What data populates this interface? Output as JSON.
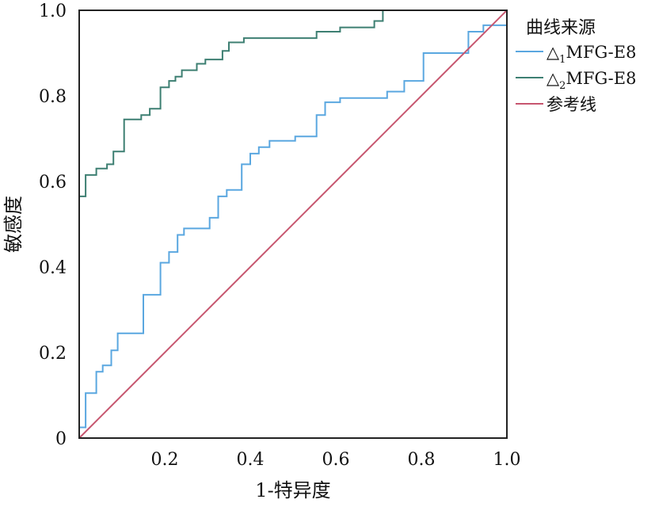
{
  "chart_data": {
    "type": "line",
    "xlabel": "1-特异度",
    "ylabel": "敏感度",
    "xlim": [
      0,
      1
    ],
    "ylim": [
      0,
      1
    ],
    "x_ticks": [
      "0.2",
      "0.4",
      "0.6",
      "0.8",
      "1.0"
    ],
    "x_tick_values": [
      0.2,
      0.4,
      0.6,
      0.8,
      1.0
    ],
    "y_ticks": [
      "0",
      "0.2",
      "0.4",
      "0.6",
      "0.8",
      "1.0"
    ],
    "y_tick_values": [
      0,
      0.2,
      0.4,
      0.6,
      0.8,
      1.0
    ],
    "grid": false,
    "legend": {
      "title": "曲线来源",
      "position": "right",
      "entries": [
        {
          "prefix": "△",
          "sub": "1",
          "suffix": "MFG-E8",
          "color": "#5aa7e0"
        },
        {
          "prefix": "△",
          "sub": "2",
          "suffix": "MFG-E8",
          "color": "#3d7f72"
        },
        {
          "prefix": "参考线",
          "sub": "",
          "suffix": "",
          "color": "#c7566f"
        }
      ]
    },
    "series": [
      {
        "name": "△1MFG-E8",
        "color": "#5aa7e0",
        "step": true,
        "x": [
          0,
          0.015,
          0.015,
          0.04,
          0.04,
          0.055,
          0.055,
          0.075,
          0.075,
          0.09,
          0.09,
          0.15,
          0.15,
          0.19,
          0.19,
          0.21,
          0.21,
          0.23,
          0.23,
          0.245,
          0.245,
          0.305,
          0.305,
          0.325,
          0.325,
          0.345,
          0.345,
          0.38,
          0.38,
          0.4,
          0.4,
          0.42,
          0.42,
          0.445,
          0.445,
          0.505,
          0.505,
          0.555,
          0.555,
          0.575,
          0.575,
          0.61,
          0.61,
          0.72,
          0.72,
          0.76,
          0.76,
          0.805,
          0.805,
          0.91,
          0.91,
          0.945,
          0.945,
          1.0
        ],
        "y": [
          0.025,
          0.025,
          0.105,
          0.105,
          0.155,
          0.155,
          0.17,
          0.17,
          0.205,
          0.205,
          0.245,
          0.245,
          0.335,
          0.335,
          0.41,
          0.41,
          0.435,
          0.435,
          0.475,
          0.475,
          0.49,
          0.49,
          0.515,
          0.515,
          0.565,
          0.565,
          0.58,
          0.58,
          0.64,
          0.64,
          0.665,
          0.665,
          0.68,
          0.68,
          0.695,
          0.695,
          0.705,
          0.705,
          0.755,
          0.755,
          0.785,
          0.785,
          0.795,
          0.795,
          0.81,
          0.81,
          0.835,
          0.835,
          0.9,
          0.9,
          0.95,
          0.95,
          0.965,
          0.965
        ]
      },
      {
        "name": "△2MFG-E8",
        "color": "#3d7f72",
        "step": true,
        "x": [
          0,
          0.015,
          0.015,
          0.04,
          0.04,
          0.065,
          0.065,
          0.08,
          0.08,
          0.105,
          0.105,
          0.145,
          0.145,
          0.165,
          0.165,
          0.19,
          0.19,
          0.21,
          0.21,
          0.225,
          0.225,
          0.24,
          0.24,
          0.275,
          0.275,
          0.295,
          0.295,
          0.335,
          0.335,
          0.35,
          0.35,
          0.385,
          0.385,
          0.555,
          0.555,
          0.61,
          0.61,
          0.69,
          0.69,
          0.71,
          0.71,
          1.0
        ],
        "y": [
          0.565,
          0.565,
          0.615,
          0.615,
          0.63,
          0.63,
          0.64,
          0.64,
          0.67,
          0.67,
          0.745,
          0.745,
          0.755,
          0.755,
          0.77,
          0.77,
          0.82,
          0.82,
          0.835,
          0.835,
          0.845,
          0.845,
          0.86,
          0.86,
          0.875,
          0.875,
          0.885,
          0.885,
          0.905,
          0.905,
          0.925,
          0.925,
          0.935,
          0.935,
          0.95,
          0.95,
          0.96,
          0.96,
          0.975,
          0.975,
          1.0,
          1.0
        ]
      },
      {
        "name": "参考线",
        "color": "#c7566f",
        "step": false,
        "x": [
          0,
          1
        ],
        "y": [
          0,
          1
        ]
      }
    ]
  }
}
